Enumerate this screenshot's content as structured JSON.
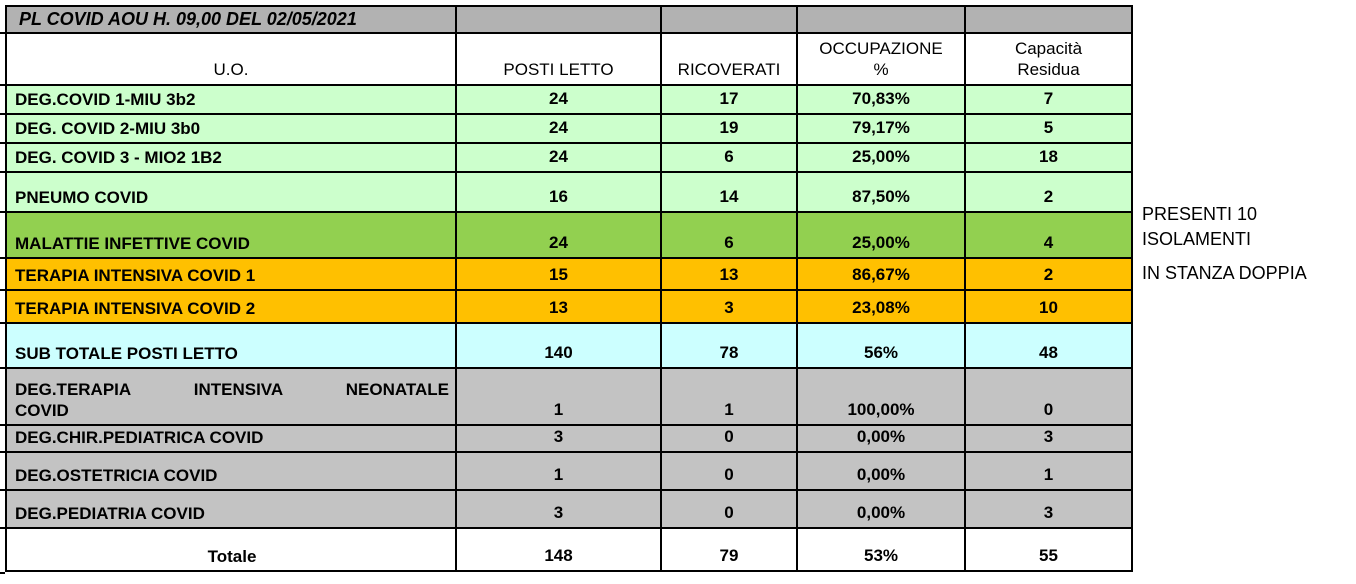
{
  "title": "PL COVID AOU H. 09,00 DEL 02/05/2021",
  "colors": {
    "title_bar": "#B2B2B2",
    "light_green": "#CCFFCC",
    "green": "#92D050",
    "orange": "#FFC000",
    "cyan": "#CCFFFF",
    "gray": "#C3C3C3",
    "white": "#FFFFFF",
    "border": "#000000"
  },
  "table": {
    "columns": [
      "U.O.",
      "POSTI LETTO",
      "RICOVERATI",
      "OCCUPAZIONE %",
      "Capacità Residua"
    ],
    "rows": [
      {
        "label": "DEG.COVID 1-MIU 3b2",
        "posti_letto": "24",
        "ricoverati": "17",
        "occupazione": "70,83%",
        "capacita_residua": "7",
        "bg": "light_green"
      },
      {
        "label": "DEG. COVID 2-MIU 3b0",
        "posti_letto": "24",
        "ricoverati": "19",
        "occupazione": "79,17%",
        "capacita_residua": "5",
        "bg": "light_green"
      },
      {
        "label": "DEG. COVID 3 - MIO2 1B2",
        "posti_letto": "24",
        "ricoverati": "6",
        "occupazione": "25,00%",
        "capacita_residua": "18",
        "bg": "light_green"
      },
      {
        "label": "PNEUMO COVID",
        "posti_letto": "16",
        "ricoverati": "14",
        "occupazione": "87,50%",
        "capacita_residua": "2",
        "bg": "light_green"
      },
      {
        "label": "MALATTIE INFETTIVE COVID",
        "posti_letto": "24",
        "ricoverati": "6",
        "occupazione": "25,00%",
        "capacita_residua": "4",
        "bg": "green"
      },
      {
        "label": "TERAPIA INTENSIVA COVID 1",
        "posti_letto": "15",
        "ricoverati": "13",
        "occupazione": "86,67%",
        "capacita_residua": "2",
        "bg": "orange"
      },
      {
        "label": "TERAPIA INTENSIVA COVID 2",
        "posti_letto": "13",
        "ricoverati": "3",
        "occupazione": "23,08%",
        "capacita_residua": "10",
        "bg": "orange"
      },
      {
        "label": "SUB TOTALE POSTI LETTO",
        "posti_letto": "140",
        "ricoverati": "78",
        "occupazione": "56%",
        "capacita_residua": "48",
        "bg": "cyan"
      },
      {
        "label": "DEG.TERAPIA INTENSIVA NEONATALE COVID",
        "posti_letto": "1",
        "ricoverati": "1",
        "occupazione": "100,00%",
        "capacita_residua": "0",
        "bg": "gray"
      },
      {
        "label": "DEG.CHIR.PEDIATRICA COVID",
        "posti_letto": "3",
        "ricoverati": "0",
        "occupazione": "0,00%",
        "capacita_residua": "3",
        "bg": "gray"
      },
      {
        "label": "DEG.OSTETRICIA COVID",
        "posti_letto": "1",
        "ricoverati": "0",
        "occupazione": "0,00%",
        "capacita_residua": "1",
        "bg": "gray"
      },
      {
        "label": "DEG.PEDIATRIA COVID",
        "posti_letto": "3",
        "ricoverati": "0",
        "occupazione": "0,00%",
        "capacita_residua": "3",
        "bg": "gray"
      },
      {
        "label": "Totale",
        "posti_letto": "148",
        "ricoverati": "79",
        "occupazione": "53%",
        "capacita_residua": "55",
        "bg": "white"
      }
    ]
  },
  "side_note": {
    "line1": "PRESENTI 10 ISOLAMENTI",
    "line2": "IN STANZA DOPPIA"
  }
}
